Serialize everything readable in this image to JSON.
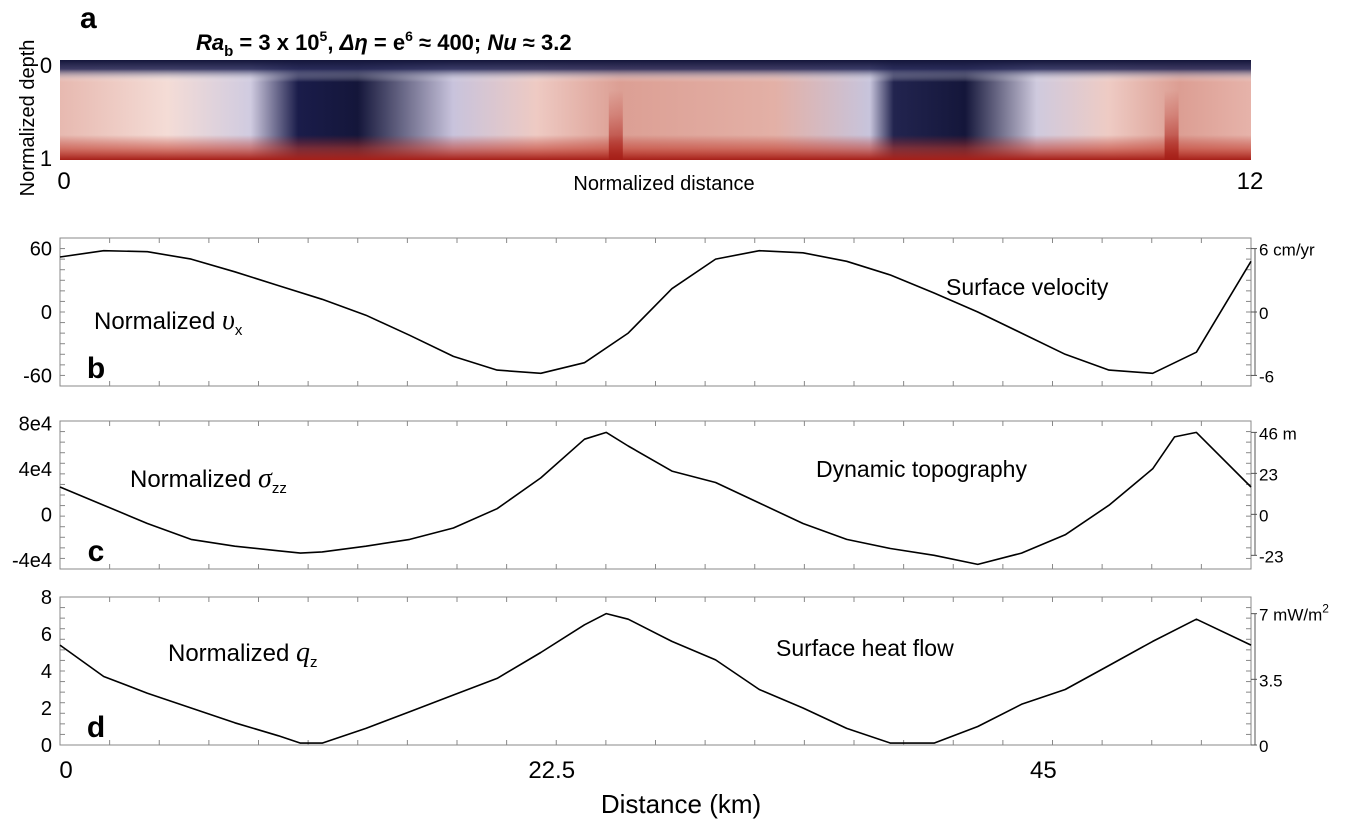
{
  "panel_a": {
    "letter": "a",
    "title": {
      "ra": "Ra",
      "ra_sub": "b",
      "ra_val": " = 3 x 10",
      "ra_exp": "5",
      "sep1": ", ",
      "deta": "Δη",
      "deta_val": " = e",
      "deta_exp": "6",
      "approx": " ≈ 400; ",
      "nu": "Nu",
      "nu_val": " ≈ 3.2"
    },
    "ylabel": "Normalized depth",
    "xlabel": "Normalized distance",
    "y_ticks": [
      "0",
      "1"
    ],
    "x_ticks": [
      "0",
      "12"
    ]
  },
  "panels": [
    {
      "letter": "b",
      "label_main": "Normalized ",
      "label_sym": "υ",
      "label_sub": "x",
      "annotation": "Surface velocity",
      "left_ticks": [
        "60",
        "0",
        "-60"
      ],
      "right_ticks": [
        "6 cm/yr",
        "0",
        "-6"
      ]
    },
    {
      "letter": "c",
      "label_main": "Normalized ",
      "label_sym": "σ",
      "label_sub": "zz",
      "annotation": "Dynamic topography",
      "left_ticks": [
        "8e4",
        "4e4",
        "0",
        "-4e4"
      ],
      "right_ticks": [
        "46 m",
        "23",
        "0",
        "-23"
      ]
    },
    {
      "letter": "d",
      "label_main": "Normalized ",
      "label_sym": "q",
      "label_sub": "z",
      "annotation": "Surface heat flow",
      "left_ticks": [
        "8",
        "6",
        "4",
        "2",
        "0"
      ],
      "right_ticks": [
        "7 mW/m",
        "3.5",
        "0"
      ],
      "right_top_sup": "2"
    }
  ],
  "bottom_axis": {
    "xlabel": "Distance (km)",
    "x_ticks": [
      "0",
      "22.5",
      "45"
    ]
  },
  "colors": {
    "cold": "#1a1c4a",
    "hot": "#b3261e",
    "white": "#ffffff",
    "line": "#000000"
  },
  "chart_data": [
    {
      "type": "heatmap",
      "title": "Ra_b = 3 x 10^5, Δη = e^6 ≈ 400; Nu ≈ 3.2",
      "xlabel": "Normalized distance",
      "ylabel": "Normalized depth",
      "xlim": [
        0,
        12
      ],
      "ylim": [
        0,
        1
      ],
      "downwelling_centers_x": [
        2.3,
        8.4
      ],
      "upwelling_centers_x": [
        5.6,
        11.2
      ]
    },
    {
      "type": "line",
      "title": "Surface velocity",
      "ylabel": "Normalized υx",
      "xlim": [
        0,
        54.5
      ],
      "ylim": [
        -70,
        70
      ],
      "right_axis": {
        "unit": "cm/yr",
        "values": [
          6,
          0,
          -6
        ]
      },
      "x": [
        0,
        2,
        4,
        6,
        8,
        10,
        12,
        14,
        16,
        18,
        20,
        22,
        24,
        26,
        28,
        30,
        32,
        34,
        36,
        38,
        40,
        42,
        44,
        46,
        48,
        50,
        52,
        54.5
      ],
      "y": [
        52,
        58,
        57,
        50,
        38,
        25,
        12,
        -3,
        -22,
        -42,
        -55,
        -58,
        -48,
        -20,
        22,
        50,
        58,
        56,
        48,
        35,
        18,
        0,
        -20,
        -40,
        -55,
        -58,
        -38,
        48
      ]
    },
    {
      "type": "line",
      "title": "Dynamic topography",
      "ylabel": "Normalized σzz",
      "xlim": [
        0,
        54.5
      ],
      "ylim": [
        -48000,
        82000
      ],
      "right_axis": {
        "unit": "m",
        "values": [
          46,
          23,
          0,
          -23
        ]
      },
      "x": [
        0,
        2,
        4,
        6,
        8,
        10,
        11,
        12,
        14,
        16,
        18,
        20,
        22,
        24,
        25,
        26,
        28,
        30,
        32,
        34,
        36,
        38,
        40,
        42,
        44,
        46,
        48,
        50,
        51,
        52,
        54.5
      ],
      "y": [
        24000,
        8000,
        -8000,
        -22000,
        -28000,
        -32000,
        -34000,
        -33000,
        -28000,
        -22000,
        -12000,
        5000,
        32000,
        66000,
        72000,
        60000,
        38000,
        28000,
        10000,
        -8000,
        -22000,
        -30000,
        -36000,
        -44000,
        -34000,
        -18000,
        8000,
        40000,
        68000,
        72000,
        24000
      ]
    },
    {
      "type": "line",
      "title": "Surface heat flow",
      "ylabel": "Normalized qz",
      "xlim": [
        0,
        54.5
      ],
      "ylim": [
        0,
        8
      ],
      "right_axis": {
        "unit": "mW/m2",
        "values": [
          7,
          3.5,
          0
        ]
      },
      "x": [
        0,
        2,
        4,
        6,
        8,
        10,
        11,
        12,
        14,
        16,
        18,
        20,
        22,
        24,
        25,
        26,
        28,
        30,
        32,
        34,
        36,
        38,
        40,
        42,
        44,
        46,
        48,
        50,
        52,
        54.5
      ],
      "y": [
        5.4,
        3.7,
        2.8,
        2.0,
        1.2,
        0.5,
        0.1,
        0.1,
        0.9,
        1.8,
        2.7,
        3.6,
        5.0,
        6.5,
        7.1,
        6.8,
        5.6,
        4.6,
        3.0,
        2.0,
        0.9,
        0.1,
        0.1,
        1.0,
        2.2,
        3.0,
        4.3,
        5.6,
        6.8,
        5.4
      ]
    }
  ]
}
